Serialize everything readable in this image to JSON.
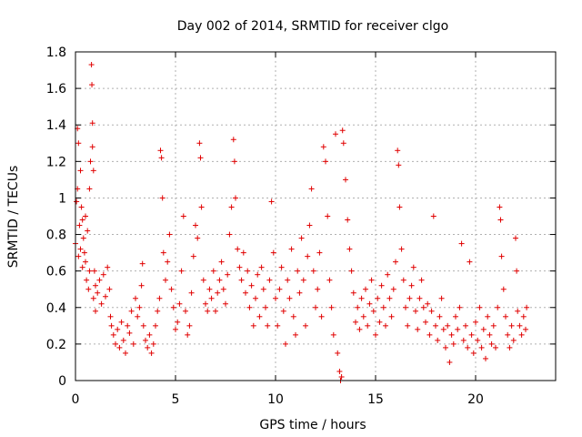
{
  "chart_data": {
    "type": "scatter",
    "title": "Day 002 of 2014, SRMTID for receiver clgo",
    "xlabel": "GPS time / hours",
    "ylabel": "SRMTID / TECUs",
    "xlim": [
      0,
      24
    ],
    "ylim": [
      0,
      1.8
    ],
    "x_ticks": [
      0,
      5,
      10,
      15,
      20
    ],
    "x_tick_labels": [
      "0",
      "5",
      "10",
      "15",
      "20"
    ],
    "y_ticks": [
      0,
      0.2,
      0.4,
      0.6,
      0.8,
      1,
      1.2,
      1.4,
      1.6,
      1.8
    ],
    "y_tick_labels": [
      "0",
      "0.2",
      "0.4",
      "0.6",
      "0.8",
      "1",
      "1.2",
      "1.4",
      "1.6",
      "1.8"
    ],
    "grid": true,
    "marker": "+",
    "series": [
      {
        "name": "SRMTID",
        "color": "#e00000",
        "points": [
          [
            0.0,
            0.75
          ],
          [
            0.05,
            0.98
          ],
          [
            0.1,
            1.05
          ],
          [
            0.1,
            1.38
          ],
          [
            0.15,
            1.3
          ],
          [
            0.15,
            0.68
          ],
          [
            0.2,
            0.85
          ],
          [
            0.25,
            1.15
          ],
          [
            0.25,
            0.72
          ],
          [
            0.3,
            0.95
          ],
          [
            0.35,
            0.62
          ],
          [
            0.35,
            0.88
          ],
          [
            0.4,
            0.78
          ],
          [
            0.45,
            0.7
          ],
          [
            0.5,
            0.65
          ],
          [
            0.5,
            0.9
          ],
          [
            0.55,
            0.55
          ],
          [
            0.6,
            0.82
          ],
          [
            0.65,
            0.5
          ],
          [
            0.7,
            0.6
          ],
          [
            0.7,
            1.05
          ],
          [
            0.75,
            1.2
          ],
          [
            0.8,
            1.73
          ],
          [
            0.82,
            1.62
          ],
          [
            0.85,
            1.41
          ],
          [
            0.85,
            1.28
          ],
          [
            0.9,
            1.15
          ],
          [
            0.9,
            0.45
          ],
          [
            0.95,
            0.6
          ],
          [
            1.0,
            0.52
          ],
          [
            1.0,
            0.38
          ],
          [
            1.1,
            0.48
          ],
          [
            1.2,
            0.55
          ],
          [
            1.3,
            0.42
          ],
          [
            1.4,
            0.58
          ],
          [
            1.5,
            0.46
          ],
          [
            1.6,
            0.62
          ],
          [
            1.7,
            0.5
          ],
          [
            1.75,
            0.35
          ],
          [
            1.8,
            0.3
          ],
          [
            1.9,
            0.25
          ],
          [
            2.0,
            0.2
          ],
          [
            2.1,
            0.28
          ],
          [
            2.2,
            0.18
          ],
          [
            2.3,
            0.32
          ],
          [
            2.4,
            0.22
          ],
          [
            2.5,
            0.15
          ],
          [
            2.6,
            0.3
          ],
          [
            2.7,
            0.26
          ],
          [
            2.8,
            0.38
          ],
          [
            2.9,
            0.2
          ],
          [
            3.0,
            0.45
          ],
          [
            3.1,
            0.35
          ],
          [
            3.2,
            0.4
          ],
          [
            3.3,
            0.52
          ],
          [
            3.35,
            0.64
          ],
          [
            3.4,
            0.3
          ],
          [
            3.5,
            0.22
          ],
          [
            3.6,
            0.18
          ],
          [
            3.7,
            0.25
          ],
          [
            3.8,
            0.15
          ],
          [
            3.9,
            0.2
          ],
          [
            4.0,
            0.3
          ],
          [
            4.1,
            0.38
          ],
          [
            4.2,
            0.45
          ],
          [
            4.25,
            1.26
          ],
          [
            4.3,
            1.22
          ],
          [
            4.35,
            1.0
          ],
          [
            4.4,
            0.7
          ],
          [
            4.5,
            0.55
          ],
          [
            4.6,
            0.65
          ],
          [
            4.7,
            0.8
          ],
          [
            4.8,
            0.5
          ],
          [
            4.9,
            0.4
          ],
          [
            5.0,
            0.28
          ],
          [
            5.1,
            0.32
          ],
          [
            5.2,
            0.42
          ],
          [
            5.3,
            0.6
          ],
          [
            5.4,
            0.9
          ],
          [
            5.5,
            0.38
          ],
          [
            5.6,
            0.25
          ],
          [
            5.7,
            0.3
          ],
          [
            5.8,
            0.48
          ],
          [
            5.9,
            0.68
          ],
          [
            6.0,
            0.85
          ],
          [
            6.1,
            0.78
          ],
          [
            6.2,
            1.3
          ],
          [
            6.25,
            1.22
          ],
          [
            6.3,
            0.95
          ],
          [
            6.4,
            0.55
          ],
          [
            6.5,
            0.42
          ],
          [
            6.6,
            0.38
          ],
          [
            6.7,
            0.5
          ],
          [
            6.8,
            0.45
          ],
          [
            6.9,
            0.6
          ],
          [
            7.0,
            0.38
          ],
          [
            7.1,
            0.48
          ],
          [
            7.2,
            0.55
          ],
          [
            7.3,
            0.65
          ],
          [
            7.4,
            0.5
          ],
          [
            7.5,
            0.42
          ],
          [
            7.6,
            0.58
          ],
          [
            7.7,
            0.8
          ],
          [
            7.8,
            0.95
          ],
          [
            7.9,
            1.32
          ],
          [
            7.95,
            1.2
          ],
          [
            8.0,
            1.0
          ],
          [
            8.1,
            0.72
          ],
          [
            8.2,
            0.62
          ],
          [
            8.3,
            0.55
          ],
          [
            8.4,
            0.7
          ],
          [
            8.5,
            0.48
          ],
          [
            8.6,
            0.6
          ],
          [
            8.7,
            0.4
          ],
          [
            8.8,
            0.52
          ],
          [
            8.9,
            0.3
          ],
          [
            9.0,
            0.45
          ],
          [
            9.1,
            0.58
          ],
          [
            9.2,
            0.35
          ],
          [
            9.3,
            0.62
          ],
          [
            9.4,
            0.5
          ],
          [
            9.5,
            0.4
          ],
          [
            9.6,
            0.3
          ],
          [
            9.7,
            0.55
          ],
          [
            9.8,
            0.98
          ],
          [
            9.9,
            0.7
          ],
          [
            10.0,
            0.45
          ],
          [
            10.1,
            0.3
          ],
          [
            10.2,
            0.5
          ],
          [
            10.3,
            0.62
          ],
          [
            10.4,
            0.38
          ],
          [
            10.5,
            0.2
          ],
          [
            10.6,
            0.55
          ],
          [
            10.7,
            0.45
          ],
          [
            10.8,
            0.72
          ],
          [
            10.9,
            0.35
          ],
          [
            11.0,
            0.25
          ],
          [
            11.1,
            0.6
          ],
          [
            11.2,
            0.48
          ],
          [
            11.3,
            0.78
          ],
          [
            11.4,
            0.55
          ],
          [
            11.5,
            0.3
          ],
          [
            11.6,
            0.68
          ],
          [
            11.7,
            0.85
          ],
          [
            11.8,
            1.05
          ],
          [
            11.9,
            0.6
          ],
          [
            12.0,
            0.4
          ],
          [
            12.1,
            0.5
          ],
          [
            12.2,
            0.7
          ],
          [
            12.3,
            0.35
          ],
          [
            12.4,
            1.28
          ],
          [
            12.5,
            1.2
          ],
          [
            12.6,
            0.9
          ],
          [
            12.7,
            0.55
          ],
          [
            12.8,
            0.4
          ],
          [
            12.9,
            0.25
          ],
          [
            13.0,
            1.35
          ],
          [
            13.1,
            0.15
          ],
          [
            13.2,
            0.05
          ],
          [
            13.25,
            0.0
          ],
          [
            13.3,
            0.02
          ],
          [
            13.35,
            1.37
          ],
          [
            13.4,
            1.3
          ],
          [
            13.5,
            1.1
          ],
          [
            13.6,
            0.88
          ],
          [
            13.7,
            0.72
          ],
          [
            13.8,
            0.6
          ],
          [
            13.9,
            0.48
          ],
          [
            14.0,
            0.32
          ],
          [
            14.1,
            0.4
          ],
          [
            14.2,
            0.28
          ],
          [
            14.3,
            0.45
          ],
          [
            14.4,
            0.35
          ],
          [
            14.5,
            0.5
          ],
          [
            14.6,
            0.3
          ],
          [
            14.7,
            0.42
          ],
          [
            14.8,
            0.55
          ],
          [
            14.9,
            0.38
          ],
          [
            15.0,
            0.25
          ],
          [
            15.1,
            0.45
          ],
          [
            15.2,
            0.32
          ],
          [
            15.3,
            0.52
          ],
          [
            15.4,
            0.4
          ],
          [
            15.5,
            0.3
          ],
          [
            15.6,
            0.58
          ],
          [
            15.7,
            0.45
          ],
          [
            15.8,
            0.35
          ],
          [
            15.9,
            0.5
          ],
          [
            16.0,
            0.65
          ],
          [
            16.1,
            1.26
          ],
          [
            16.15,
            1.18
          ],
          [
            16.2,
            0.95
          ],
          [
            16.3,
            0.72
          ],
          [
            16.4,
            0.55
          ],
          [
            16.5,
            0.4
          ],
          [
            16.6,
            0.3
          ],
          [
            16.7,
            0.45
          ],
          [
            16.8,
            0.52
          ],
          [
            16.9,
            0.62
          ],
          [
            17.0,
            0.38
          ],
          [
            17.1,
            0.28
          ],
          [
            17.2,
            0.45
          ],
          [
            17.3,
            0.55
          ],
          [
            17.4,
            0.4
          ],
          [
            17.5,
            0.32
          ],
          [
            17.6,
            0.42
          ],
          [
            17.7,
            0.25
          ],
          [
            17.8,
            0.38
          ],
          [
            17.9,
            0.9
          ],
          [
            18.0,
            0.3
          ],
          [
            18.1,
            0.22
          ],
          [
            18.2,
            0.35
          ],
          [
            18.3,
            0.45
          ],
          [
            18.4,
            0.28
          ],
          [
            18.5,
            0.18
          ],
          [
            18.6,
            0.3
          ],
          [
            18.7,
            0.1
          ],
          [
            18.8,
            0.25
          ],
          [
            18.9,
            0.2
          ],
          [
            19.0,
            0.35
          ],
          [
            19.1,
            0.28
          ],
          [
            19.2,
            0.4
          ],
          [
            19.3,
            0.75
          ],
          [
            19.4,
            0.22
          ],
          [
            19.5,
            0.3
          ],
          [
            19.6,
            0.18
          ],
          [
            19.7,
            0.65
          ],
          [
            19.8,
            0.25
          ],
          [
            19.9,
            0.15
          ],
          [
            20.0,
            0.32
          ],
          [
            20.1,
            0.22
          ],
          [
            20.2,
            0.4
          ],
          [
            20.3,
            0.18
          ],
          [
            20.4,
            0.28
          ],
          [
            20.5,
            0.12
          ],
          [
            20.6,
            0.35
          ],
          [
            20.7,
            0.25
          ],
          [
            20.8,
            0.2
          ],
          [
            20.9,
            0.3
          ],
          [
            21.0,
            0.18
          ],
          [
            21.1,
            0.4
          ],
          [
            21.2,
            0.95
          ],
          [
            21.25,
            0.88
          ],
          [
            21.3,
            0.68
          ],
          [
            21.4,
            0.5
          ],
          [
            21.5,
            0.35
          ],
          [
            21.6,
            0.25
          ],
          [
            21.7,
            0.18
          ],
          [
            21.8,
            0.3
          ],
          [
            21.9,
            0.22
          ],
          [
            22.0,
            0.78
          ],
          [
            22.05,
            0.6
          ],
          [
            22.1,
            0.38
          ],
          [
            22.2,
            0.3
          ],
          [
            22.3,
            0.25
          ],
          [
            22.4,
            0.35
          ],
          [
            22.5,
            0.28
          ],
          [
            22.55,
            0.4
          ]
        ]
      }
    ]
  }
}
